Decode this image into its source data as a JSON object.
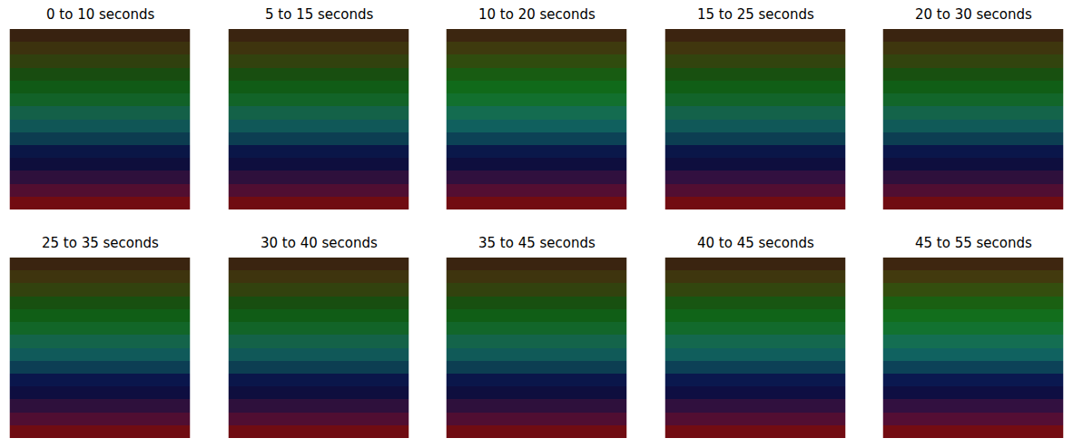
{
  "chart_data": {
    "type": "image_grid",
    "tick_labels": false,
    "panels": [
      {
        "title": "0 to 10 seconds",
        "rows": [
          [
            56,
            34,
            16
          ],
          [
            60,
            50,
            14
          ],
          [
            48,
            64,
            14
          ],
          [
            24,
            76,
            16
          ],
          [
            16,
            90,
            22
          ],
          [
            18,
            98,
            40
          ],
          [
            20,
            96,
            72
          ],
          [
            16,
            86,
            86
          ],
          [
            12,
            60,
            80
          ],
          [
            10,
            22,
            70
          ],
          [
            14,
            14,
            60
          ],
          [
            46,
            16,
            60
          ],
          [
            82,
            14,
            48
          ],
          [
            114,
            12,
            18
          ]
        ]
      },
      {
        "title": "5 to 15 seconds",
        "rows": [
          [
            58,
            36,
            16
          ],
          [
            62,
            52,
            14
          ],
          [
            50,
            66,
            14
          ],
          [
            24,
            78,
            16
          ],
          [
            16,
            92,
            22
          ],
          [
            18,
            100,
            40
          ],
          [
            20,
            98,
            72
          ],
          [
            16,
            88,
            88
          ],
          [
            12,
            62,
            82
          ],
          [
            10,
            22,
            72
          ],
          [
            14,
            14,
            62
          ],
          [
            46,
            16,
            60
          ],
          [
            80,
            14,
            50
          ],
          [
            112,
            12,
            18
          ]
        ]
      },
      {
        "title": "10 to 20 seconds",
        "rows": [
          [
            60,
            38,
            16
          ],
          [
            62,
            58,
            14
          ],
          [
            48,
            76,
            14
          ],
          [
            24,
            92,
            18
          ],
          [
            16,
            106,
            26
          ],
          [
            18,
            112,
            46
          ],
          [
            20,
            108,
            80
          ],
          [
            16,
            96,
            94
          ],
          [
            12,
            66,
            86
          ],
          [
            10,
            24,
            74
          ],
          [
            14,
            14,
            62
          ],
          [
            48,
            16,
            62
          ],
          [
            84,
            14,
            50
          ],
          [
            114,
            12,
            18
          ]
        ]
      },
      {
        "title": "15 to 25 seconds",
        "rows": [
          [
            60,
            36,
            16
          ],
          [
            64,
            54,
            14
          ],
          [
            50,
            68,
            14
          ],
          [
            24,
            80,
            16
          ],
          [
            16,
            94,
            22
          ],
          [
            18,
            100,
            42
          ],
          [
            20,
            98,
            74
          ],
          [
            16,
            88,
            88
          ],
          [
            12,
            62,
            82
          ],
          [
            10,
            22,
            72
          ],
          [
            14,
            14,
            62
          ],
          [
            50,
            16,
            64
          ],
          [
            82,
            14,
            50
          ],
          [
            114,
            12,
            18
          ]
        ]
      },
      {
        "title": "20 to 30 seconds",
        "rows": [
          [
            58,
            36,
            16
          ],
          [
            62,
            54,
            14
          ],
          [
            50,
            68,
            14
          ],
          [
            24,
            80,
            16
          ],
          [
            16,
            94,
            22
          ],
          [
            18,
            102,
            42
          ],
          [
            20,
            100,
            74
          ],
          [
            16,
            90,
            88
          ],
          [
            12,
            62,
            82
          ],
          [
            10,
            22,
            74
          ],
          [
            14,
            14,
            62
          ],
          [
            46,
            16,
            60
          ],
          [
            80,
            14,
            50
          ],
          [
            112,
            12,
            18
          ]
        ]
      },
      {
        "title": "25 to 35 seconds",
        "rows": [
          [
            58,
            36,
            16
          ],
          [
            62,
            52,
            14
          ],
          [
            50,
            66,
            14
          ],
          [
            24,
            80,
            16
          ],
          [
            16,
            94,
            22
          ],
          [
            18,
            102,
            40
          ],
          [
            20,
            100,
            74
          ],
          [
            16,
            90,
            90
          ],
          [
            12,
            62,
            84
          ],
          [
            10,
            22,
            76
          ],
          [
            14,
            14,
            64
          ],
          [
            46,
            16,
            60
          ],
          [
            80,
            14,
            50
          ],
          [
            112,
            12,
            18
          ]
        ]
      },
      {
        "title": "30 to 40 seconds",
        "rows": [
          [
            58,
            36,
            16
          ],
          [
            62,
            52,
            14
          ],
          [
            50,
            66,
            14
          ],
          [
            24,
            78,
            16
          ],
          [
            16,
            92,
            22
          ],
          [
            18,
            100,
            40
          ],
          [
            20,
            98,
            72
          ],
          [
            16,
            88,
            88
          ],
          [
            12,
            62,
            82
          ],
          [
            10,
            22,
            74
          ],
          [
            14,
            14,
            62
          ],
          [
            46,
            16,
            60
          ],
          [
            80,
            14,
            50
          ],
          [
            112,
            12,
            18
          ]
        ]
      },
      {
        "title": "35 to 45 seconds",
        "rows": [
          [
            58,
            36,
            16
          ],
          [
            62,
            52,
            14
          ],
          [
            50,
            66,
            14
          ],
          [
            24,
            80,
            16
          ],
          [
            16,
            94,
            22
          ],
          [
            18,
            102,
            42
          ],
          [
            20,
            100,
            74
          ],
          [
            16,
            90,
            88
          ],
          [
            12,
            62,
            82
          ],
          [
            10,
            22,
            74
          ],
          [
            14,
            14,
            62
          ],
          [
            46,
            16,
            60
          ],
          [
            80,
            14,
            50
          ],
          [
            112,
            12,
            18
          ]
        ]
      },
      {
        "title": "40 to 45 seconds",
        "rows": [
          [
            58,
            36,
            16
          ],
          [
            62,
            54,
            14
          ],
          [
            50,
            70,
            14
          ],
          [
            24,
            86,
            18
          ],
          [
            16,
            100,
            24
          ],
          [
            18,
            106,
            44
          ],
          [
            20,
            104,
            78
          ],
          [
            16,
            94,
            92
          ],
          [
            12,
            64,
            86
          ],
          [
            10,
            24,
            78
          ],
          [
            14,
            14,
            66
          ],
          [
            48,
            16,
            62
          ],
          [
            82,
            14,
            50
          ],
          [
            114,
            12,
            18
          ]
        ]
      },
      {
        "title": "45 to 55 seconds",
        "rows": [
          [
            62,
            38,
            16
          ],
          [
            66,
            58,
            14
          ],
          [
            52,
            78,
            14
          ],
          [
            26,
            96,
            18
          ],
          [
            18,
            110,
            28
          ],
          [
            18,
            114,
            48
          ],
          [
            20,
            110,
            82
          ],
          [
            16,
            98,
            96
          ],
          [
            12,
            66,
            88
          ],
          [
            10,
            24,
            80
          ],
          [
            14,
            14,
            66
          ],
          [
            50,
            16,
            64
          ],
          [
            84,
            14,
            52
          ],
          [
            116,
            12,
            18
          ]
        ]
      }
    ]
  }
}
